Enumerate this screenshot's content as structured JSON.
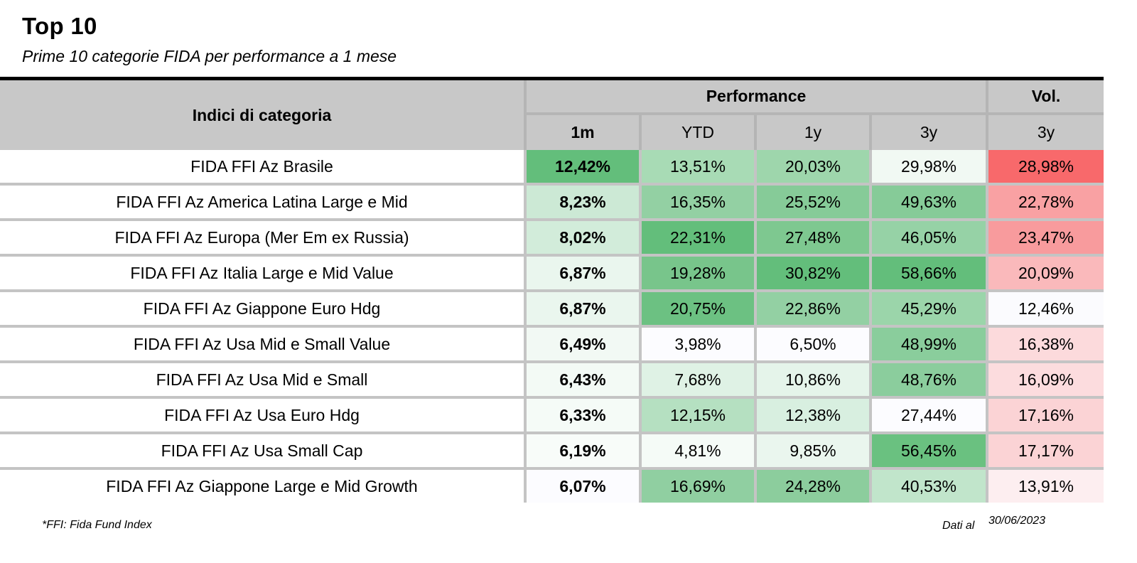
{
  "header": {
    "title": "Top 10",
    "subtitle": "Prime 10 categorie FIDA per performance a 1 mese"
  },
  "table": {
    "category_header": "Indici di categoria",
    "performance_header": "Performance",
    "vol_header": "Vol.",
    "columns": [
      "1m",
      "YTD",
      "1y",
      "3y",
      "3y"
    ],
    "rows": [
      {
        "name": "FIDA FFI Az Brasile",
        "values": [
          "12,42%",
          "13,51%",
          "20,03%",
          "29,98%",
          "28,98%"
        ],
        "colors": [
          "#63be7b",
          "#a8dbb5",
          "#9ed6ac",
          "#f1f9f3",
          "#f8696b"
        ]
      },
      {
        "name": "FIDA FFI Az America Latina Large e Mid",
        "values": [
          "8,23%",
          "16,35%",
          "25,52%",
          "49,63%",
          "22,78%"
        ],
        "colors": [
          "#cce9d5",
          "#93d0a3",
          "#86cb98",
          "#86cb98",
          "#f9a1a3"
        ]
      },
      {
        "name": "FIDA FFI Az Europa (Mer Em ex Russia)",
        "values": [
          "8,02%",
          "22,31%",
          "27,48%",
          "46,05%",
          "23,47%"
        ],
        "colors": [
          "#d2ecda",
          "#63be7b",
          "#7ec890",
          "#96d2a6",
          "#f89b9d"
        ]
      },
      {
        "name": "FIDA FFI Az Italia Large e Mid Value",
        "values": [
          "6,87%",
          "19,28%",
          "30,82%",
          "58,66%",
          "20,09%"
        ],
        "colors": [
          "#eaf6ee",
          "#78c58b",
          "#63be7b",
          "#63be7b",
          "#fab9bb"
        ]
      },
      {
        "name": "FIDA FFI Az Giappone Euro Hdg",
        "values": [
          "6,87%",
          "20,75%",
          "22,86%",
          "45,29%",
          "12,46%"
        ],
        "colors": [
          "#eaf6ee",
          "#6cc182",
          "#93d0a3",
          "#9bd5aa",
          "#fbfbfe"
        ]
      },
      {
        "name": "FIDA FFI Az Usa Mid e Small Value",
        "values": [
          "6,49%",
          "3,98%",
          "6,50%",
          "48,99%",
          "16,38%"
        ],
        "colors": [
          "#f2f9f4",
          "#fcfcff",
          "#fcfcff",
          "#8acd9c",
          "#fcdadc"
        ]
      },
      {
        "name": "FIDA FFI Az Usa Mid e Small",
        "values": [
          "6,43%",
          "7,68%",
          "10,86%",
          "48,76%",
          "16,09%"
        ],
        "colors": [
          "#f3faf5",
          "#dff2e5",
          "#e5f4ea",
          "#8bcd9d",
          "#fcdcde"
        ]
      },
      {
        "name": "FIDA FFI Az Usa Euro Hdg",
        "values": [
          "6,33%",
          "12,15%",
          "12,38%",
          "27,44%",
          "17,16%"
        ],
        "colors": [
          "#f5fbf7",
          "#b5e0c1",
          "#d8efe0",
          "#fcfcff",
          "#fbd3d5"
        ]
      },
      {
        "name": "FIDA FFI Az Usa Small Cap",
        "values": [
          "6,19%",
          "4,81%",
          "9,85%",
          "56,45%",
          "17,17%"
        ],
        "colors": [
          "#f8fcf9",
          "#f5fbf7",
          "#eaf6ee",
          "#6ac180",
          "#fbd3d5"
        ]
      },
      {
        "name": "FIDA FFI Az Giappone Large e Mid Growth",
        "values": [
          "6,07%",
          "16,69%",
          "24,28%",
          "40,53%",
          "13,91%"
        ],
        "colors": [
          "#fcfcff",
          "#90cfa1",
          "#8ccd9d",
          "#c1e5cb",
          "#fdeef0"
        ]
      }
    ]
  },
  "footer": {
    "note": "*FFI: Fida Fund Index",
    "date_label": "Dati al",
    "date_value": "30/06/2023"
  }
}
